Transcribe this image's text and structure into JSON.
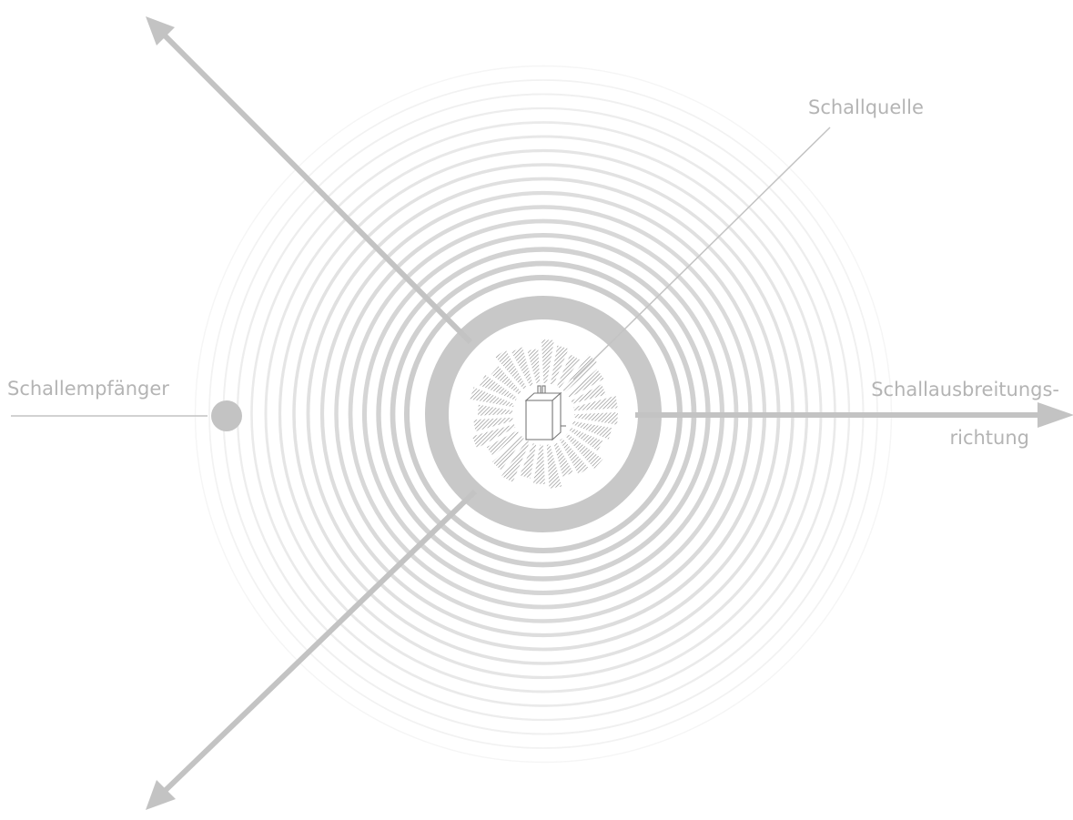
{
  "labels": {
    "source": "Schallquelle",
    "receiver": "Schallempfänger",
    "direction_line1": "Schallausbreitungs-",
    "direction_line2": "richtung"
  },
  "colors": {
    "background": "#ffffff",
    "arrow": "#c3c3c3",
    "label": "#b4b4b4",
    "thick_ring": "#c8c8c8",
    "receiver_dot": "#c3c3c3",
    "device_outline": "#7a7a7a",
    "hatch": "#9a9a9a"
  }
}
